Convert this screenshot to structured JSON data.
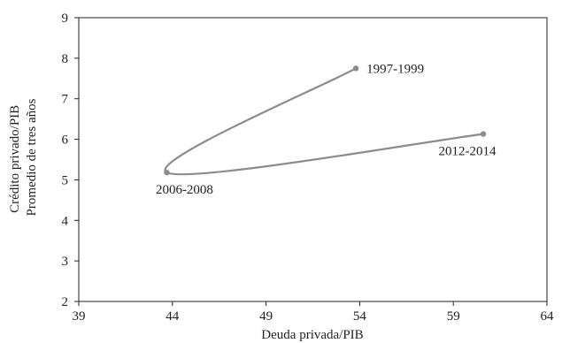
{
  "chart_data": {
    "type": "line",
    "xlabel": "Deuda privada/PIB",
    "ylabel_lines": [
      "Crédito privado/PIB",
      "Promedio de tres años"
    ],
    "xlim": [
      39,
      64
    ],
    "ylim": [
      2,
      9
    ],
    "x_ticks": [
      39,
      44,
      49,
      54,
      59,
      64
    ],
    "y_ticks": [
      2,
      3,
      4,
      5,
      6,
      7,
      8,
      9
    ],
    "grid": false,
    "series": [
      {
        "line_color": "#8c8c8c",
        "marker_color": "#8c8c8c",
        "points": [
          {
            "x": 53.8,
            "y": 7.75,
            "label": "1997-1999"
          },
          {
            "x": 43.7,
            "y": 5.18,
            "label": "2006-2008"
          },
          {
            "x": 60.6,
            "y": 6.13,
            "label": "2012-2014"
          }
        ]
      }
    ]
  }
}
